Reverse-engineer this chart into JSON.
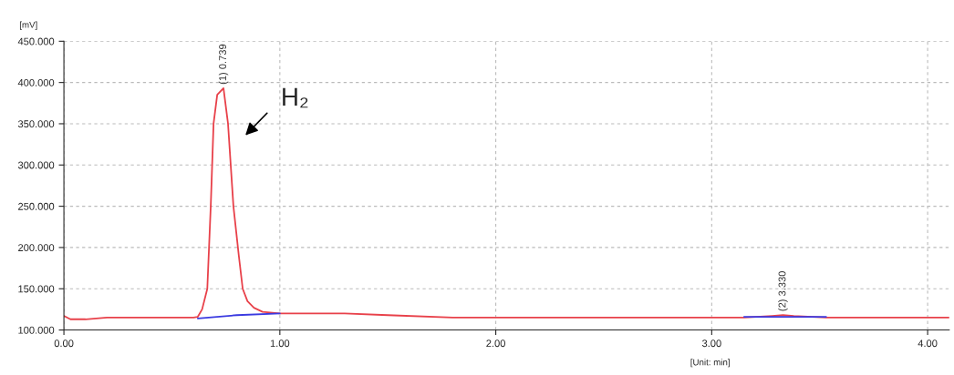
{
  "chart_data": {
    "type": "line",
    "ylabel": "[mV]",
    "xlabel": "[Unit: min]",
    "xlim": [
      0,
      4.1
    ],
    "ylim": [
      100,
      450
    ],
    "xticks": [
      {
        "value": 0,
        "label": "0.00"
      },
      {
        "value": 1,
        "label": "1.00"
      },
      {
        "value": 2,
        "label": "2.00"
      },
      {
        "value": 3,
        "label": "3.00"
      },
      {
        "value": 4,
        "label": "4.00"
      }
    ],
    "yticks": [
      {
        "value": 100,
        "label": "100.000"
      },
      {
        "value": 150,
        "label": "150.000"
      },
      {
        "value": 200,
        "label": "200.000"
      },
      {
        "value": 250,
        "label": "250.000"
      },
      {
        "value": 300,
        "label": "300.000"
      },
      {
        "value": 350,
        "label": "350.000"
      },
      {
        "value": 400,
        "label": "400.000"
      },
      {
        "value": 450,
        "label": "450.000"
      }
    ],
    "grid": true,
    "line_style": "solid",
    "marker": "none",
    "series": [
      {
        "color": "#e8414a",
        "x": [
          0,
          0.03,
          0.1,
          0.2,
          0.4,
          0.6,
          0.62,
          0.64,
          0.664,
          0.68,
          0.693,
          0.71,
          0.739,
          0.76,
          0.785,
          0.81,
          0.828,
          0.85,
          0.88,
          0.92,
          1.0,
          1.3,
          1.5,
          1.8,
          2.5,
          3.15,
          3.28,
          3.33,
          3.38,
          3.53,
          4.1
        ],
        "values": [
          117,
          113,
          113,
          115,
          115,
          115,
          116,
          125,
          150,
          250,
          350,
          385,
          393,
          350,
          250,
          190,
          150,
          135,
          127,
          122,
          120,
          120,
          118,
          115,
          115,
          115,
          117,
          118,
          117,
          115,
          115
        ]
      },
      {
        "color": "#3a3ae0",
        "x": [
          0.62,
          0.8,
          1.0,
          1.01,
          3.15,
          3.53
        ],
        "values": [
          114,
          118,
          120,
          null,
          116,
          116
        ]
      }
    ],
    "annotations": [
      {
        "text": "(1) 0.739",
        "x": 0.739,
        "y": 393
      },
      {
        "text": "(2) 3.330",
        "x": 3.33,
        "y": 118
      },
      "H₂"
    ]
  }
}
